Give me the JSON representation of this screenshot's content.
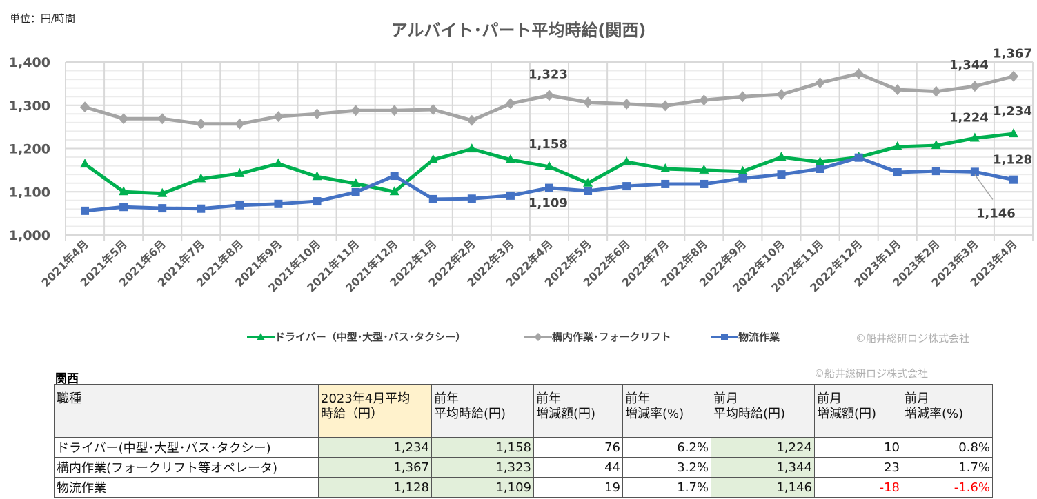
{
  "unit_label": "単位：円/時間",
  "chart_data": {
    "type": "line",
    "title": "アルバイト･パート平均時給(関西)",
    "categories": [
      "2021年4月",
      "2021年5月",
      "2021年6月",
      "2021年7月",
      "2021年8月",
      "2021年9月",
      "2021年10月",
      "2021年11月",
      "2021年12月",
      "2022年1月",
      "2022年2月",
      "2022年3月",
      "2022年4月",
      "2022年5月",
      "2022年6月",
      "2022年7月",
      "2022年8月",
      "2022年9月",
      "2022年10月",
      "2022年11月",
      "2022年12月",
      "2023年1月",
      "2023年2月",
      "2023年3月",
      "2023年4月"
    ],
    "ylim": [
      1000,
      1400
    ],
    "yticks": [
      "1,000",
      "1,100",
      "1,200",
      "1,300",
      "1,400"
    ],
    "grid": true,
    "legend": "bottom",
    "series": [
      {
        "name": "ドライバー（中型･大型･バス･タクシー）",
        "color": "#00b050",
        "marker": "triangle",
        "values": [
          1164,
          1100,
          1096,
          1130,
          1142,
          1165,
          1135,
          1119,
          1100,
          1174,
          1199,
          1174,
          1158,
          1120,
          1169,
          1153,
          1150,
          1147,
          1180,
          1169,
          1180,
          1204,
          1207,
          1224,
          1234
        ]
      },
      {
        "name": "構内作業･フォークリフト",
        "color": "#a5a5a5",
        "marker": "diamond",
        "values": [
          1296,
          1269,
          1269,
          1257,
          1257,
          1274,
          1280,
          1288,
          1288,
          1290,
          1265,
          1304,
          1323,
          1307,
          1303,
          1299,
          1312,
          1320,
          1325,
          1352,
          1373,
          1336,
          1332,
          1344,
          1367
        ]
      },
      {
        "name": "物流作業",
        "color": "#4472c4",
        "marker": "square",
        "values": [
          1056,
          1065,
          1062,
          1061,
          1069,
          1072,
          1078,
          1099,
          1137,
          1083,
          1084,
          1091,
          1109,
          1102,
          1113,
          1118,
          1118,
          1131,
          1140,
          1153,
          1179,
          1145,
          1148,
          1146,
          1128
        ]
      }
    ],
    "data_labels": [
      {
        "text": "1,323"
      },
      {
        "text": "1,344"
      },
      {
        "text": "1,367"
      },
      {
        "text": "1,158"
      },
      {
        "text": "1,224"
      },
      {
        "text": "1,234"
      },
      {
        "text": "1,109"
      },
      {
        "text": "1,146"
      },
      {
        "text": "1,128"
      }
    ]
  },
  "copyright": "©船井総研ロジ株式会社",
  "table": {
    "region": "関西",
    "headers": [
      "職種",
      "2023年4月平均\n時給（円）",
      "前年\n平均時給(円)",
      "前年\n増減額(円)",
      "前年\n増減率(%)",
      "前月\n平均時給(円)",
      "前月\n増減額(円)",
      "前月\n増減率(%)"
    ],
    "rows": [
      [
        "ドライバー(中型･大型･バス･タクシー)",
        "1,234",
        "1,158",
        "76",
        "6.2%",
        "1,224",
        "10",
        "0.8%"
      ],
      [
        "構内作業(フォークリフト等オペレータ)",
        "1,367",
        "1,323",
        "44",
        "3.2%",
        "1,344",
        "23",
        "1.7%"
      ],
      [
        "物流作業",
        "1,128",
        "1,109",
        "19",
        "1.7%",
        "1,146",
        "-18",
        "-1.6%"
      ]
    ]
  }
}
